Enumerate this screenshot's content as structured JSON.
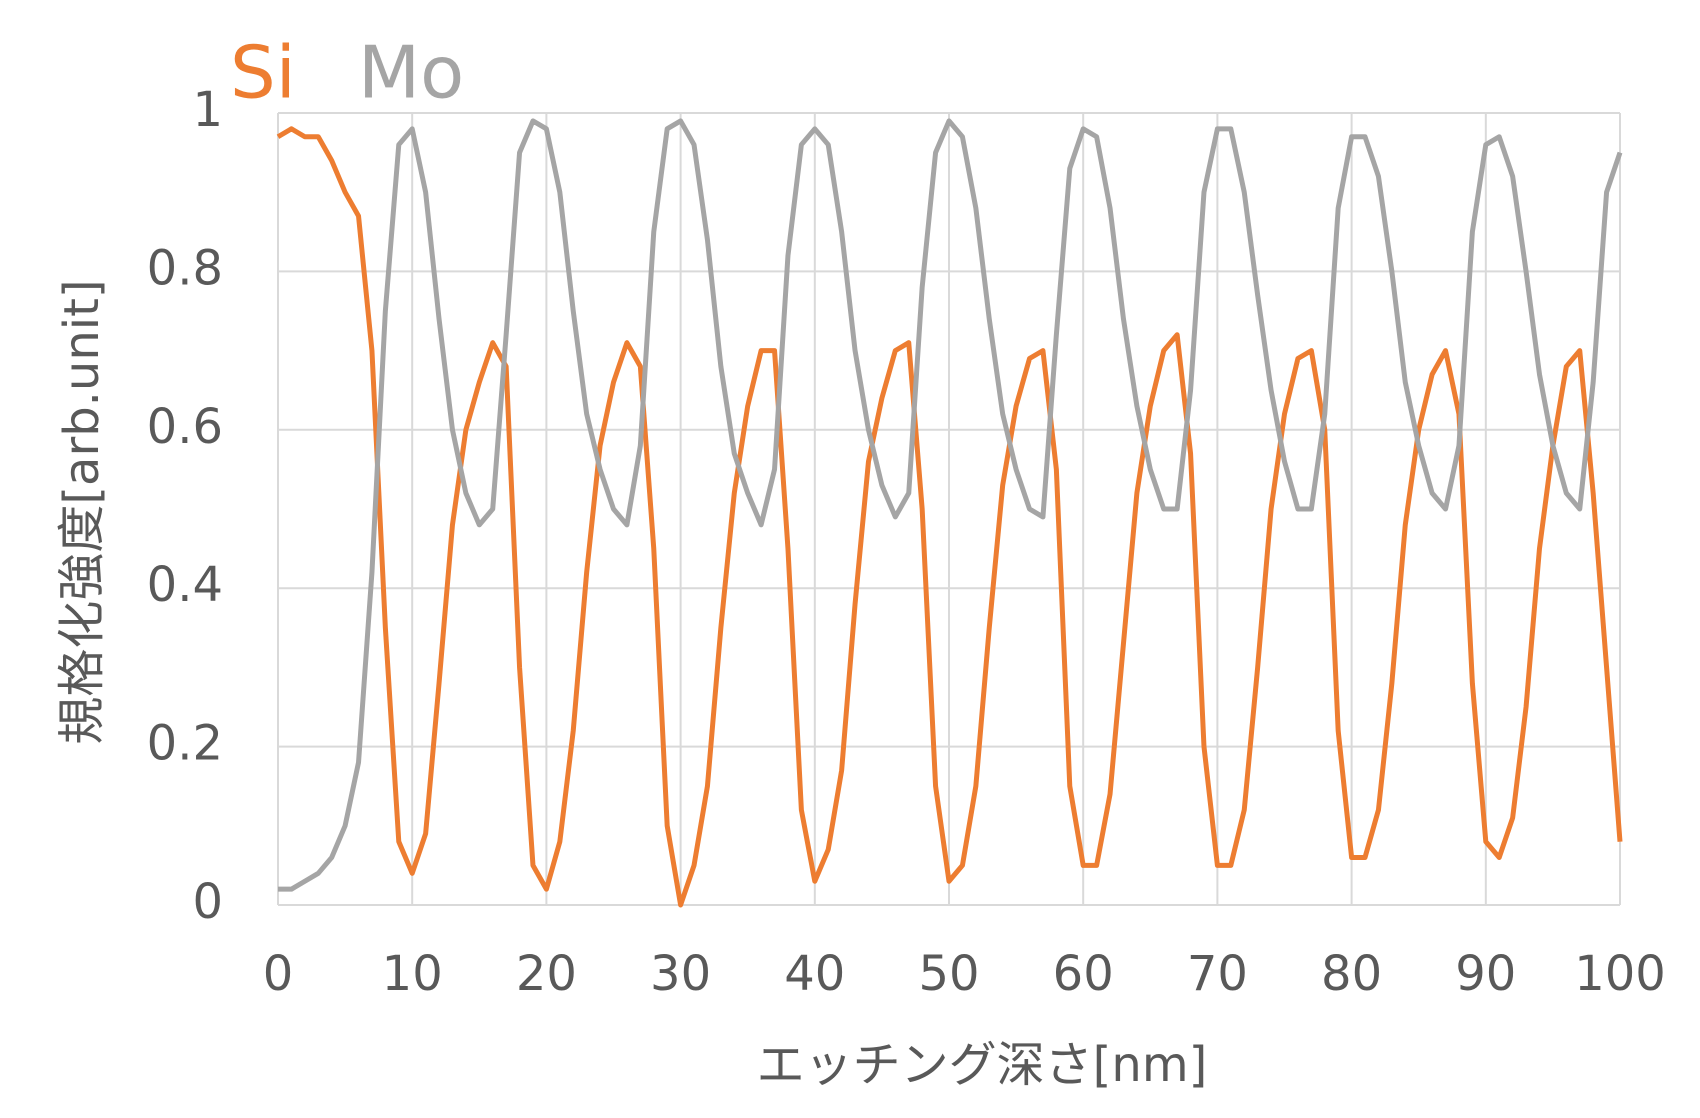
{
  "chart_data": {
    "type": "line",
    "xlabel": "エッチング深さ[nm]",
    "ylabel": "規格化強度[arb.unit]",
    "x": [
      0,
      1,
      2,
      3,
      4,
      5,
      6,
      7,
      8,
      9,
      10,
      11,
      12,
      13,
      14,
      15,
      16,
      17,
      18,
      19,
      20,
      21,
      22,
      23,
      24,
      25,
      26,
      27,
      28,
      29,
      30,
      31,
      32,
      33,
      34,
      35,
      36,
      37,
      38,
      39,
      40,
      41,
      42,
      43,
      44,
      45,
      46,
      47,
      48,
      49,
      50,
      51,
      52,
      53,
      54,
      55,
      56,
      57,
      58,
      59,
      60,
      61,
      62,
      63,
      64,
      65,
      66,
      67,
      68,
      69,
      70,
      71,
      72,
      73,
      74,
      75,
      76,
      77,
      78,
      79,
      80,
      81,
      82,
      83,
      84,
      85,
      86,
      87,
      88,
      89,
      90,
      91,
      92,
      93,
      94,
      95,
      96,
      97,
      98,
      99,
      100
    ],
    "series": [
      {
        "name": "Si",
        "color": "#ed7d31",
        "values": [
          0.97,
          0.98,
          0.97,
          0.97,
          0.94,
          0.9,
          0.87,
          0.7,
          0.35,
          0.08,
          0.04,
          0.09,
          0.28,
          0.48,
          0.6,
          0.66,
          0.71,
          0.68,
          0.3,
          0.05,
          0.02,
          0.08,
          0.22,
          0.42,
          0.58,
          0.66,
          0.71,
          0.68,
          0.45,
          0.1,
          0.0,
          0.05,
          0.15,
          0.35,
          0.52,
          0.63,
          0.7,
          0.7,
          0.45,
          0.12,
          0.03,
          0.07,
          0.17,
          0.38,
          0.56,
          0.64,
          0.7,
          0.71,
          0.5,
          0.15,
          0.03,
          0.05,
          0.15,
          0.35,
          0.53,
          0.63,
          0.69,
          0.7,
          0.55,
          0.15,
          0.05,
          0.05,
          0.14,
          0.33,
          0.52,
          0.63,
          0.7,
          0.72,
          0.57,
          0.2,
          0.05,
          0.05,
          0.12,
          0.3,
          0.5,
          0.62,
          0.69,
          0.7,
          0.6,
          0.22,
          0.06,
          0.06,
          0.12,
          0.28,
          0.48,
          0.6,
          0.67,
          0.7,
          0.62,
          0.28,
          0.08,
          0.06,
          0.11,
          0.25,
          0.45,
          0.58,
          0.68,
          0.7,
          0.52,
          0.3,
          0.08
        ]
      },
      {
        "name": "Mo",
        "color": "#a5a5a5",
        "values": [
          0.02,
          0.02,
          0.03,
          0.04,
          0.06,
          0.1,
          0.18,
          0.42,
          0.75,
          0.96,
          0.98,
          0.9,
          0.74,
          0.6,
          0.52,
          0.48,
          0.5,
          0.72,
          0.95,
          0.99,
          0.98,
          0.9,
          0.75,
          0.62,
          0.55,
          0.5,
          0.48,
          0.58,
          0.85,
          0.98,
          0.99,
          0.96,
          0.84,
          0.68,
          0.57,
          0.52,
          0.48,
          0.55,
          0.82,
          0.96,
          0.98,
          0.96,
          0.85,
          0.7,
          0.6,
          0.53,
          0.49,
          0.52,
          0.78,
          0.95,
          0.99,
          0.97,
          0.88,
          0.74,
          0.62,
          0.55,
          0.5,
          0.49,
          0.72,
          0.93,
          0.98,
          0.97,
          0.88,
          0.74,
          0.63,
          0.55,
          0.5,
          0.5,
          0.65,
          0.9,
          0.98,
          0.98,
          0.9,
          0.77,
          0.65,
          0.56,
          0.5,
          0.5,
          0.62,
          0.88,
          0.97,
          0.97,
          0.92,
          0.8,
          0.66,
          0.58,
          0.52,
          0.5,
          0.58,
          0.85,
          0.96,
          0.97,
          0.92,
          0.8,
          0.67,
          0.58,
          0.52,
          0.5,
          0.66,
          0.9,
          0.95
        ]
      }
    ],
    "xlim": [
      0,
      100
    ],
    "xticks": [
      0,
      10,
      20,
      30,
      40,
      50,
      60,
      70,
      80,
      90,
      100
    ],
    "ylim": [
      0,
      1
    ],
    "yticks": [
      0,
      0.2,
      0.4,
      0.6,
      0.8,
      1
    ],
    "grid": true
  }
}
